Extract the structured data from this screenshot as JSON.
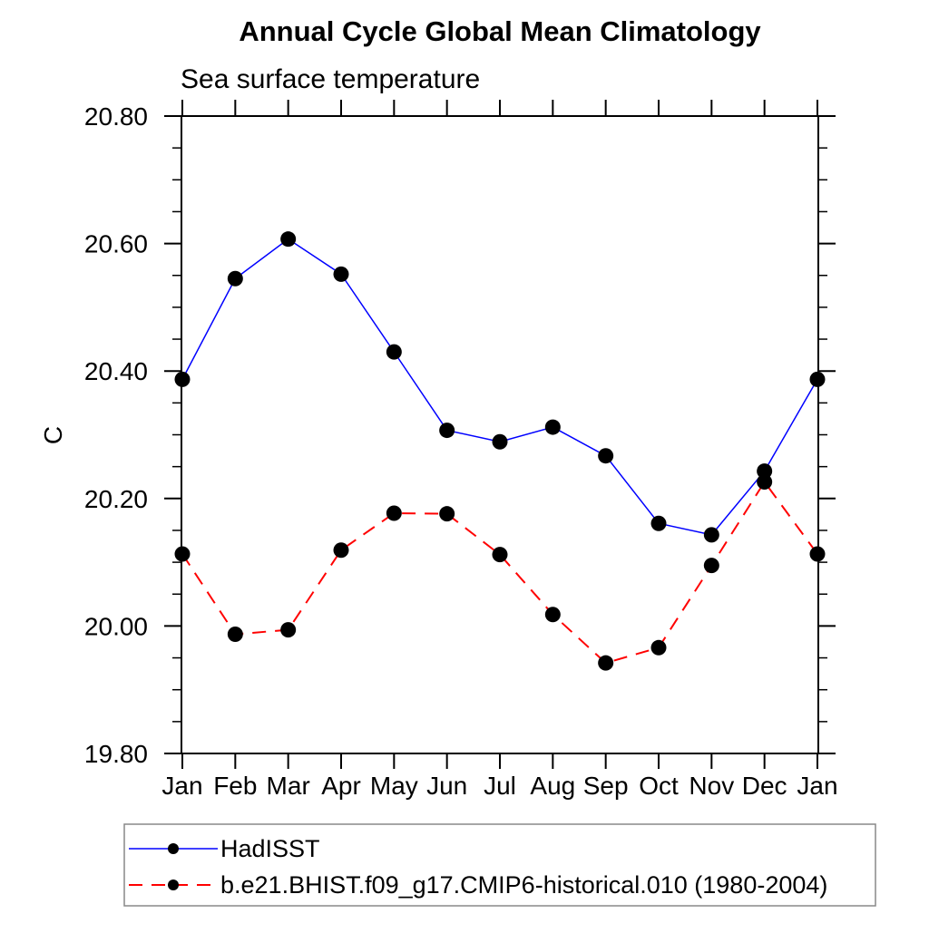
{
  "chart_data": {
    "type": "line",
    "title": "Annual Cycle Global Mean Climatology",
    "subtitle": "Sea surface temperature",
    "ylabel": "C",
    "xlabel": "",
    "categories": [
      "Jan",
      "Feb",
      "Mar",
      "Apr",
      "May",
      "Jun",
      "Jul",
      "Aug",
      "Sep",
      "Oct",
      "Nov",
      "Dec",
      "Jan"
    ],
    "ylim": [
      19.8,
      20.8
    ],
    "ytick_major_interval": 0.2,
    "ytick_minor_interval": 0.05,
    "ytick_labels": [
      "19.80",
      "20.00",
      "20.20",
      "20.40",
      "20.60",
      "20.80"
    ],
    "grid": false,
    "legend_position": "bottom",
    "frame_color": "#000000",
    "marker_color": "#000000",
    "series": [
      {
        "name": "HadISST",
        "color": "#0000ff",
        "style": "solid",
        "marker": "circle",
        "values": [
          20.387,
          20.545,
          20.607,
          20.552,
          20.43,
          20.307,
          20.289,
          20.312,
          20.267,
          20.161,
          20.143,
          20.243,
          20.387
        ]
      },
      {
        "name": "b.e21.BHIST.f09_g17.CMIP6-historical.010 (1980-2004)",
        "color": "#ff0000",
        "style": "dashed",
        "marker": "circle",
        "values": [
          20.113,
          19.987,
          19.994,
          20.119,
          20.177,
          20.176,
          20.112,
          20.018,
          19.942,
          19.966,
          20.095,
          20.226,
          20.113
        ]
      }
    ]
  }
}
